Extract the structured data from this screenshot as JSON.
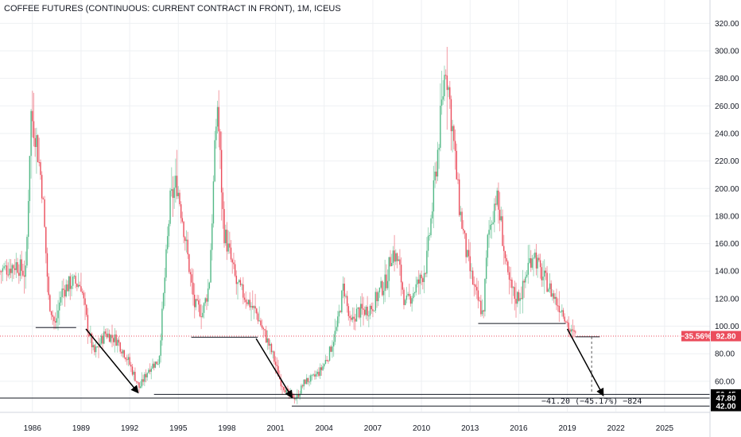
{
  "chart_data": {
    "type": "candlestick",
    "title": "COFFEE FUTURES (CONTINUOUS: CURRENT CONTRACT IN FRONT), 1M, ICEUS",
    "x_ticks": [
      "1986",
      "1989",
      "1992",
      "1995",
      "1998",
      "2001",
      "2004",
      "2007",
      "2010",
      "2013",
      "2016",
      "2019",
      "2022",
      "2025"
    ],
    "y_ticks": [
      60,
      80,
      100,
      120,
      140,
      160,
      180,
      200,
      220,
      240,
      260,
      280,
      300,
      320
    ],
    "y_tick_labels": [
      "60.00",
      "80.00",
      "100.00",
      "120.00",
      "140.00",
      "160.00",
      "180.00",
      "200.00",
      "220.00",
      "240.00",
      "260.00",
      "280.00",
      "300.00",
      "320.00"
    ],
    "ylim": [
      38,
      330
    ],
    "xlim": [
      1984.0,
      2027.8
    ],
    "grid": true,
    "colors": {
      "up": "#53b987",
      "down": "#eb4d5c",
      "line": "#000000"
    },
    "current_price": {
      "value": 92.8,
      "label": "92.80",
      "change_label": "−35.56%",
      "color": "#eb4d5c"
    },
    "level_labels": [
      {
        "value": 50.45,
        "label": "50.45"
      },
      {
        "value": 47.8,
        "label": "47.80"
      },
      {
        "value": 42.0,
        "label": "42.00"
      }
    ],
    "measurement_label": "−41.20 (−45.17%) −824",
    "anchors": [
      [
        1984.0,
        140
      ],
      [
        1985.0,
        145
      ],
      [
        1985.6,
        138
      ],
      [
        1985.9,
        255
      ],
      [
        1986.2,
        240
      ],
      [
        1986.6,
        200
      ],
      [
        1987.0,
        120
      ],
      [
        1987.4,
        100
      ],
      [
        1987.8,
        125
      ],
      [
        1988.4,
        132
      ],
      [
        1989.0,
        130
      ],
      [
        1989.4,
        100
      ],
      [
        1989.8,
        80
      ],
      [
        1990.5,
        95
      ],
      [
        1991.2,
        90
      ],
      [
        1991.8,
        78
      ],
      [
        1992.6,
        55
      ],
      [
        1993.2,
        70
      ],
      [
        1993.8,
        75
      ],
      [
        1994.5,
        190
      ],
      [
        1994.9,
        205
      ],
      [
        1995.3,
        175
      ],
      [
        1995.7,
        140
      ],
      [
        1996.0,
        115
      ],
      [
        1996.5,
        110
      ],
      [
        1996.9,
        130
      ],
      [
        1997.4,
        265
      ],
      [
        1997.8,
        170
      ],
      [
        1998.2,
        150
      ],
      [
        1998.6,
        130
      ],
      [
        1999.2,
        120
      ],
      [
        1999.8,
        110
      ],
      [
        2000.3,
        95
      ],
      [
        2000.8,
        80
      ],
      [
        2001.3,
        60
      ],
      [
        2001.8,
        50
      ],
      [
        2002.3,
        48
      ],
      [
        2002.8,
        60
      ],
      [
        2003.3,
        62
      ],
      [
        2003.8,
        68
      ],
      [
        2004.3,
        80
      ],
      [
        2004.8,
        100
      ],
      [
        2005.2,
        130
      ],
      [
        2005.6,
        100
      ],
      [
        2006.0,
        110
      ],
      [
        2006.6,
        112
      ],
      [
        2007.0,
        115
      ],
      [
        2007.4,
        125
      ],
      [
        2007.8,
        132
      ],
      [
        2008.2,
        155
      ],
      [
        2008.6,
        145
      ],
      [
        2009.0,
        115
      ],
      [
        2009.5,
        125
      ],
      [
        2010.0,
        135
      ],
      [
        2010.3,
        145
      ],
      [
        2010.7,
        190
      ],
      [
        2011.1,
        240
      ],
      [
        2011.5,
        292
      ],
      [
        2011.9,
        245
      ],
      [
        2012.3,
        190
      ],
      [
        2012.8,
        150
      ],
      [
        2013.3,
        125
      ],
      [
        2013.8,
        108
      ],
      [
        2014.1,
        165
      ],
      [
        2014.6,
        195
      ],
      [
        2014.9,
        175
      ],
      [
        2015.3,
        135
      ],
      [
        2015.8,
        120
      ],
      [
        2016.2,
        125
      ],
      [
        2016.6,
        145
      ],
      [
        2016.9,
        155
      ],
      [
        2017.3,
        140
      ],
      [
        2017.8,
        130
      ],
      [
        2018.3,
        118
      ],
      [
        2018.8,
        110
      ],
      [
        2019.2,
        95
      ],
      [
        2019.5,
        93
      ]
    ],
    "annotations": {
      "support_lines": [
        {
          "x1": 1986.2,
          "x2": 1988.7,
          "y": 99
        },
        {
          "x1": 1995.8,
          "x2": 1999.9,
          "y": 92
        },
        {
          "x1": 2013.5,
          "x2": 2018.9,
          "y": 102
        },
        {
          "x1": 2019.5,
          "x2": 2021.0,
          "y": 92.3
        }
      ],
      "arrows": [
        {
          "x1": 1989.3,
          "y1": 98,
          "x2": 1992.5,
          "y2": 52
        },
        {
          "x1": 1999.8,
          "y1": 91,
          "x2": 2002.0,
          "y2": 48.5
        },
        {
          "x1": 2019.0,
          "y1": 98,
          "x2": 2021.2,
          "y2": 50
        }
      ],
      "level_lines": [
        {
          "value": 50.45,
          "x1": 1993.5,
          "x2": 2027.8
        },
        {
          "value": 47.8,
          "x1": 1984.0,
          "x2": 2027.8
        },
        {
          "value": 42.0,
          "x1": 2002.0,
          "x2": 2027.8
        }
      ],
      "measure": {
        "x": 2020.5,
        "y1": 92.3,
        "y2": 51.2
      }
    }
  }
}
